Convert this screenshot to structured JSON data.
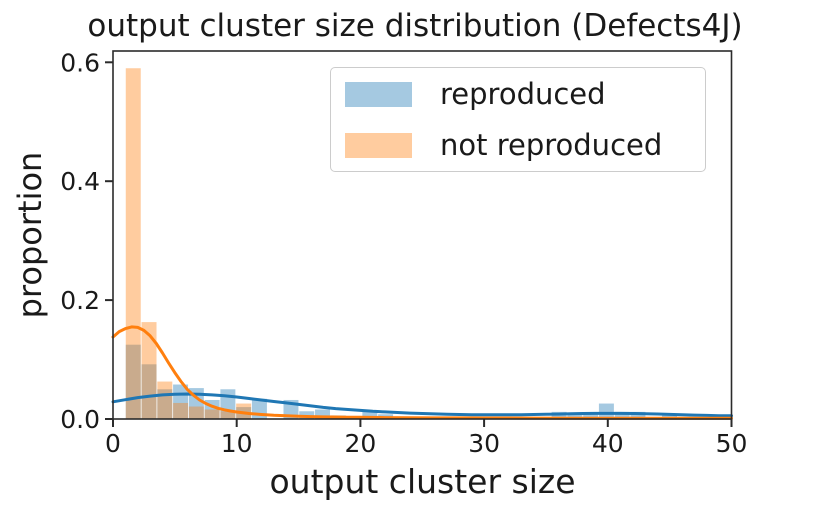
{
  "chart_data": {
    "type": "histogram_kde",
    "title": "output cluster size distribution (Defects4J)",
    "xlabel": "output cluster size",
    "ylabel": "proportion",
    "stat": "proportion",
    "xlim": [
      0,
      50
    ],
    "ylim": [
      0,
      0.619
    ],
    "grid": false,
    "legend_position": "upper right",
    "xticks": {
      "values": [
        0,
        10,
        20,
        30,
        40,
        50
      ],
      "labels": [
        "0",
        "10",
        "20",
        "30",
        "40",
        "50"
      ]
    },
    "yticks": {
      "values": [
        0.0,
        0.2,
        0.4,
        0.6
      ],
      "labels": [
        "0.0",
        "0.2",
        "0.4",
        "0.6"
      ]
    },
    "bin_width": 1.275,
    "axis_color": "#2b2b2b",
    "series": [
      {
        "name": "reproduced",
        "fill": "rgba(31,119,180,0.4)",
        "line_color": "#1f77b4",
        "bins": [
          [
            1.0,
            0.125
          ],
          [
            2.275,
            0.092
          ],
          [
            3.55,
            0.05
          ],
          [
            4.825,
            0.058
          ],
          [
            6.1,
            0.052
          ],
          [
            7.375,
            0.032
          ],
          [
            8.65,
            0.05
          ],
          [
            9.925,
            0.02
          ],
          [
            11.2,
            0.034
          ],
          [
            13.75,
            0.032
          ],
          [
            15.025,
            0.013
          ],
          [
            16.3,
            0.016
          ],
          [
            17.575,
            0.006
          ],
          [
            20.125,
            0.012
          ],
          [
            21.4,
            0.008
          ],
          [
            35.425,
            0.012
          ],
          [
            36.7,
            0.01
          ],
          [
            37.975,
            0.01
          ],
          [
            39.25,
            0.026
          ],
          [
            40.525,
            0.012
          ],
          [
            41.8,
            0.012
          ],
          [
            44.35,
            0.008
          ]
        ],
        "kde": [
          [
            0,
            0.029
          ],
          [
            1,
            0.0325
          ],
          [
            2,
            0.036
          ],
          [
            3,
            0.0385
          ],
          [
            4,
            0.0405
          ],
          [
            5,
            0.0415
          ],
          [
            6,
            0.042
          ],
          [
            7,
            0.0415
          ],
          [
            8,
            0.0405
          ],
          [
            9,
            0.039
          ],
          [
            10,
            0.037
          ],
          [
            11,
            0.0345
          ],
          [
            12,
            0.032
          ],
          [
            13,
            0.0295
          ],
          [
            14,
            0.027
          ],
          [
            15,
            0.0245
          ],
          [
            16,
            0.022
          ],
          [
            17,
            0.0195
          ],
          [
            18,
            0.0175
          ],
          [
            19,
            0.016
          ],
          [
            20,
            0.0145
          ],
          [
            21,
            0.013
          ],
          [
            22,
            0.012
          ],
          [
            23,
            0.011
          ],
          [
            24,
            0.01
          ],
          [
            25,
            0.0092
          ],
          [
            26,
            0.0085
          ],
          [
            27,
            0.008
          ],
          [
            28,
            0.0076
          ],
          [
            29,
            0.0073
          ],
          [
            30,
            0.0071
          ],
          [
            31,
            0.007
          ],
          [
            32,
            0.0071
          ],
          [
            33,
            0.0072
          ],
          [
            34,
            0.0075
          ],
          [
            35,
            0.0079
          ],
          [
            36,
            0.0083
          ],
          [
            37,
            0.0088
          ],
          [
            38,
            0.0092
          ],
          [
            39,
            0.0094
          ],
          [
            40,
            0.0095
          ],
          [
            41,
            0.0095
          ],
          [
            42,
            0.0093
          ],
          [
            43,
            0.0089
          ],
          [
            44,
            0.0084
          ],
          [
            45,
            0.0078
          ],
          [
            46,
            0.0072
          ],
          [
            47,
            0.0066
          ],
          [
            48,
            0.006
          ],
          [
            49,
            0.0056
          ],
          [
            50,
            0.0053
          ]
        ]
      },
      {
        "name": "not reproduced",
        "fill": "rgba(255,127,14,0.4)",
        "line_color": "#ff7f0e",
        "bins": [
          [
            1.0,
            0.59
          ],
          [
            2.275,
            0.163
          ],
          [
            3.55,
            0.063
          ],
          [
            4.825,
            0.027
          ],
          [
            6.1,
            0.021
          ],
          [
            7.375,
            0.016
          ],
          [
            8.65,
            0.013
          ],
          [
            9.925,
            0.026
          ]
        ],
        "kde": [
          [
            0,
            0.138
          ],
          [
            0.5,
            0.147
          ],
          [
            1,
            0.152
          ],
          [
            1.5,
            0.155
          ],
          [
            2,
            0.154
          ],
          [
            2.5,
            0.149
          ],
          [
            3,
            0.14
          ],
          [
            3.5,
            0.127
          ],
          [
            4,
            0.111
          ],
          [
            4.5,
            0.094
          ],
          [
            5,
            0.078
          ],
          [
            5.5,
            0.063
          ],
          [
            6,
            0.05
          ],
          [
            6.5,
            0.04
          ],
          [
            7,
            0.032
          ],
          [
            7.5,
            0.026
          ],
          [
            8,
            0.0215
          ],
          [
            8.5,
            0.018
          ],
          [
            9,
            0.0155
          ],
          [
            9.5,
            0.0135
          ],
          [
            10,
            0.0118
          ],
          [
            11,
            0.0092
          ],
          [
            12,
            0.0075
          ],
          [
            13,
            0.0062
          ],
          [
            14,
            0.0053
          ],
          [
            15,
            0.0046
          ],
          [
            16,
            0.004
          ],
          [
            17,
            0.0036
          ],
          [
            18,
            0.0033
          ],
          [
            19,
            0.003
          ],
          [
            20,
            0.0028
          ],
          [
            22,
            0.0024
          ],
          [
            24,
            0.0021
          ],
          [
            26,
            0.0019
          ],
          [
            28,
            0.0018
          ],
          [
            30,
            0.0017
          ],
          [
            34,
            0.0015
          ],
          [
            38,
            0.0014
          ],
          [
            42,
            0.0013
          ],
          [
            46,
            0.0013
          ],
          [
            50,
            0.0012
          ]
        ]
      }
    ]
  }
}
